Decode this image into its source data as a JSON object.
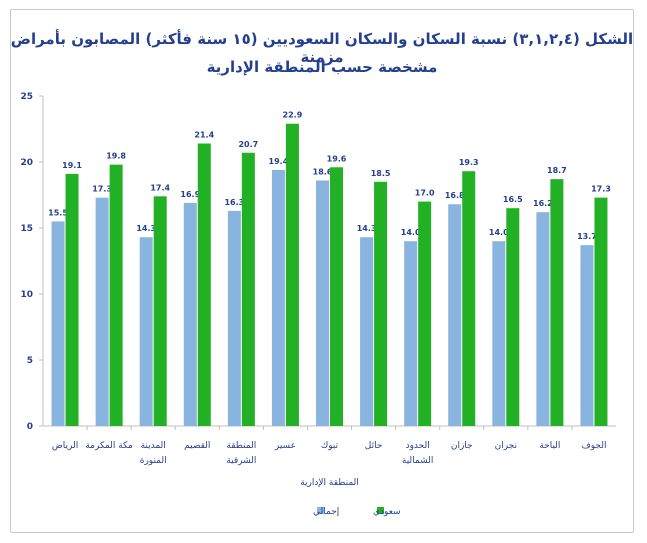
{
  "chart_data": {
    "type": "bar",
    "title": "الشكل (٣,١,٢,٤) نسبة السكان والسكان السعوديين (١٥ سنة فأكثر) المصابون بأمراض مزمنة",
    "subtitle": "مشخصة حسب المنطقة الإدارية",
    "xlabel": "المنطقة الإدارية",
    "ylabel": "",
    "ylim": [
      0,
      25
    ],
    "yticks": [
      0,
      5,
      10,
      15,
      20,
      25
    ],
    "categories": [
      [
        "الرياض"
      ],
      [
        "مكة المكرمة"
      ],
      [
        "المدينة",
        "المنورة"
      ],
      [
        "القصيم"
      ],
      [
        "المنطقة",
        "الشرقية"
      ],
      [
        "عسير"
      ],
      [
        "تبوك"
      ],
      [
        "حائل"
      ],
      [
        "الحدود",
        "الشمالية"
      ],
      [
        "جازان"
      ],
      [
        "نجران"
      ],
      [
        "الباحة"
      ],
      [
        "الجوف"
      ]
    ],
    "series": [
      {
        "name": "إجمالي",
        "color": "#8ab4e0",
        "values": [
          15.5,
          17.3,
          14.3,
          16.9,
          16.3,
          19.4,
          18.6,
          14.3,
          14.0,
          16.8,
          14.0,
          16.2,
          13.7
        ]
      },
      {
        "name": "سعودي",
        "color": "#22b024",
        "values": [
          19.1,
          19.8,
          17.4,
          21.4,
          20.7,
          22.9,
          19.6,
          18.5,
          17.0,
          19.3,
          16.5,
          18.7,
          17.3
        ]
      }
    ],
    "legend": "bottom-center",
    "grid": false,
    "data_labels": true
  }
}
